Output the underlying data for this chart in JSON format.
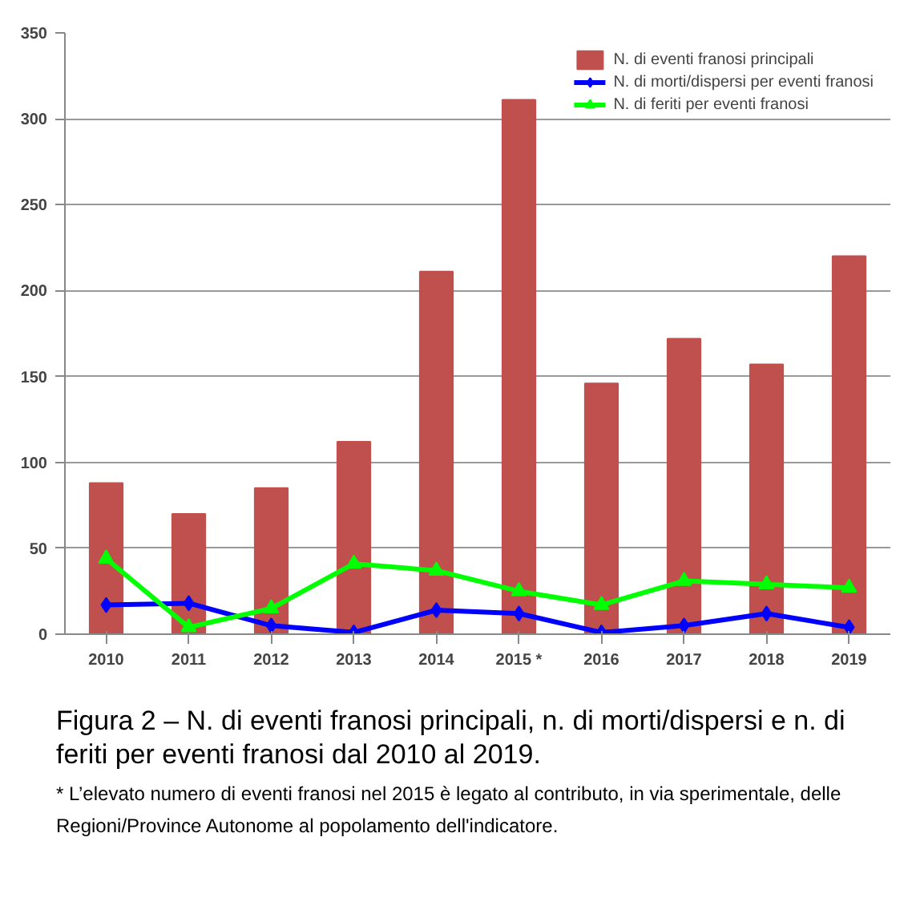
{
  "chart_data": {
    "type": "bar",
    "title": "Figura 2 – N. di eventi franosi principali, n. di morti/dispersi e n. di feriti per eventi franosi dal 2010 al 2019.",
    "categories": [
      "2010",
      "2011",
      "2012",
      "2013",
      "2014",
      "2015 *",
      "2016",
      "2017",
      "2018",
      "2019"
    ],
    "series": [
      {
        "name": "N. di eventi franosi principali",
        "color": "#c0504d",
        "values": [
          88,
          70,
          85,
          112,
          211,
          311,
          146,
          172,
          157,
          220
        ]
      },
      {
        "name": "N. di morti/dispersi per eventi franosi",
        "type": "line",
        "marker": "diamond",
        "color": "#0000ff",
        "values": [
          17,
          18,
          5,
          1,
          14,
          12,
          1,
          5,
          12,
          4
        ]
      },
      {
        "name": "N. di feriti per eventi franosi",
        "type": "line",
        "marker": "triangle",
        "color": "#00ff00",
        "values": [
          44,
          4,
          15,
          41,
          37,
          25,
          17,
          31,
          29,
          27
        ]
      }
    ],
    "ylim": [
      0,
      350
    ],
    "yticks": [
      0,
      50,
      100,
      150,
      200,
      250,
      300,
      350
    ],
    "grid": "y",
    "legend": "top right",
    "annotations": [
      "* L’elevato numero di eventi franosi nel 2015 è legato al contributo, in via sperimentale, delle Regioni/Province Autonome al popolamento dell'indicatore."
    ]
  }
}
